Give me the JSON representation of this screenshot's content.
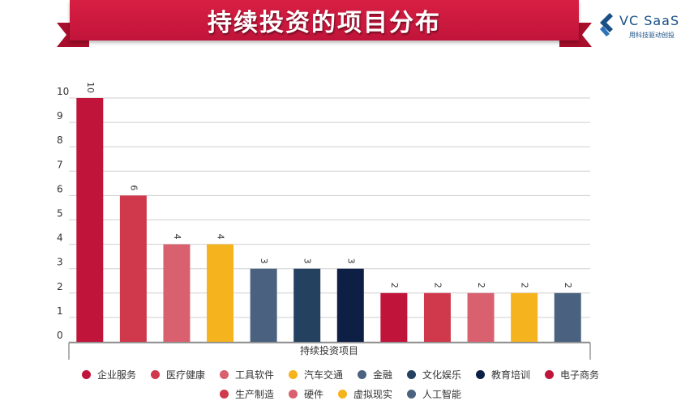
{
  "header": {
    "title": "持续投资的项目分布"
  },
  "logo": {
    "name": "VC SaaS",
    "tagline": "用科技驱动创投"
  },
  "chart_data": {
    "type": "bar",
    "title": "持续投资的项目分布",
    "xlabel": "持续投资项目",
    "ylabel": "",
    "ylim": [
      0,
      10
    ],
    "yticks": [
      "0",
      "1",
      "2",
      "3",
      "4",
      "5",
      "6",
      "7",
      "8",
      "9",
      "10"
    ],
    "grid": true,
    "legend_position": "bottom",
    "categories": [
      "企业服务",
      "医疗健康",
      "工具软件",
      "汽车交通",
      "金融",
      "文化娱乐",
      "教育培训",
      "电子商务",
      "生产制造",
      "硬件",
      "虚拟现实",
      "人工智能"
    ],
    "values": [
      10,
      6,
      4,
      4,
      3,
      3,
      3,
      2,
      2,
      2,
      2,
      2
    ],
    "data_labels": [
      "10",
      "6",
      "4",
      "4",
      "3",
      "3",
      "3",
      "2",
      "2",
      "2",
      "2",
      "2"
    ],
    "colors": [
      "#c1143a",
      "#d0384c",
      "#d9606f",
      "#f5b31e",
      "#4a6280",
      "#24425f",
      "#0d1f45",
      "#c1143a",
      "#d0384c",
      "#d9606f",
      "#f5b31e",
      "#4a6280"
    ]
  }
}
